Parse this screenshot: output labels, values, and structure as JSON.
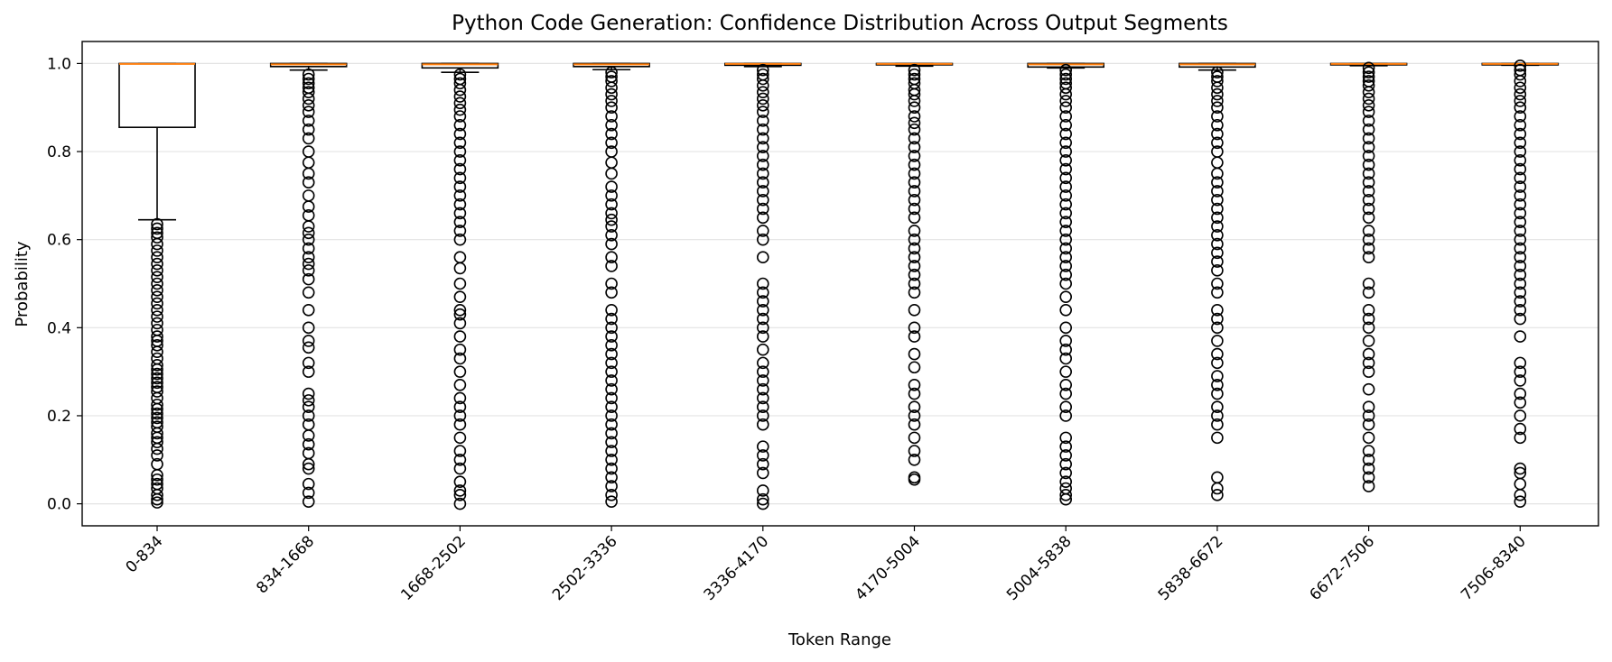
{
  "chart_data": {
    "type": "box",
    "title": "Python Code Generation: Confidence Distribution Across Output Segments",
    "xlabel": "Token Range",
    "ylabel": "Probability",
    "ylim": [
      -0.05,
      1.05
    ],
    "yticks": [
      0.0,
      0.2,
      0.4,
      0.6,
      0.8,
      1.0
    ],
    "ytick_labels": [
      "0.0",
      "0.2",
      "0.4",
      "0.6",
      "0.8",
      "1.0"
    ],
    "grid": "horizontal",
    "colors": {
      "median": "#ff7f0e",
      "box": "#000000",
      "grid": "#e3e3e3"
    },
    "categories": [
      "0-834",
      "834-1668",
      "1668-2502",
      "2502-3336",
      "3336-4170",
      "4170-5004",
      "5004-5838",
      "5838-6672",
      "6672-7506",
      "7506-8340"
    ],
    "boxes": [
      {
        "q1": 0.855,
        "median": 0.999,
        "q3": 1.0,
        "whisker_low": 0.645,
        "whisker_high": 1.0,
        "fliers": [
          0.635,
          0.625,
          0.615,
          0.605,
          0.59,
          0.575,
          0.56,
          0.545,
          0.53,
          0.515,
          0.5,
          0.485,
          0.47,
          0.455,
          0.44,
          0.425,
          0.41,
          0.395,
          0.38,
          0.37,
          0.36,
          0.345,
          0.33,
          0.315,
          0.305,
          0.295,
          0.285,
          0.275,
          0.265,
          0.255,
          0.24,
          0.225,
          0.215,
          0.205,
          0.195,
          0.185,
          0.175,
          0.16,
          0.15,
          0.14,
          0.125,
          0.11,
          0.09,
          0.065,
          0.055,
          0.045,
          0.035,
          0.02,
          0.01,
          0.003
        ]
      },
      {
        "q1": 0.993,
        "median": 0.998,
        "q3": 1.0,
        "whisker_low": 0.985,
        "whisker_high": 1.0,
        "fliers": [
          0.975,
          0.965,
          0.955,
          0.945,
          0.935,
          0.92,
          0.905,
          0.89,
          0.87,
          0.85,
          0.83,
          0.8,
          0.775,
          0.75,
          0.73,
          0.7,
          0.675,
          0.655,
          0.63,
          0.615,
          0.6,
          0.58,
          0.56,
          0.545,
          0.53,
          0.51,
          0.48,
          0.44,
          0.4,
          0.37,
          0.355,
          0.32,
          0.3,
          0.25,
          0.235,
          0.22,
          0.2,
          0.18,
          0.155,
          0.135,
          0.115,
          0.09,
          0.08,
          0.045,
          0.025,
          0.005
        ]
      },
      {
        "q1": 0.99,
        "median": 0.998,
        "q3": 1.0,
        "whisker_low": 0.98,
        "whisker_high": 1.0,
        "fliers": [
          0.975,
          0.965,
          0.955,
          0.94,
          0.925,
          0.91,
          0.895,
          0.88,
          0.86,
          0.84,
          0.82,
          0.8,
          0.78,
          0.76,
          0.74,
          0.72,
          0.7,
          0.68,
          0.66,
          0.64,
          0.62,
          0.6,
          0.56,
          0.535,
          0.5,
          0.47,
          0.44,
          0.43,
          0.41,
          0.38,
          0.35,
          0.33,
          0.3,
          0.27,
          0.24,
          0.22,
          0.2,
          0.18,
          0.15,
          0.12,
          0.1,
          0.08,
          0.05,
          0.03,
          0.02,
          0.0
        ]
      },
      {
        "q1": 0.993,
        "median": 0.998,
        "q3": 1.0,
        "whisker_low": 0.986,
        "whisker_high": 1.0,
        "fliers": [
          0.98,
          0.97,
          0.96,
          0.945,
          0.93,
          0.915,
          0.9,
          0.88,
          0.86,
          0.84,
          0.82,
          0.8,
          0.775,
          0.75,
          0.72,
          0.7,
          0.68,
          0.66,
          0.645,
          0.63,
          0.61,
          0.59,
          0.56,
          0.54,
          0.5,
          0.48,
          0.44,
          0.42,
          0.4,
          0.38,
          0.36,
          0.34,
          0.32,
          0.3,
          0.28,
          0.26,
          0.24,
          0.22,
          0.2,
          0.18,
          0.16,
          0.14,
          0.12,
          0.1,
          0.08,
          0.06,
          0.04,
          0.02,
          0.005
        ]
      },
      {
        "q1": 0.996,
        "median": 0.999,
        "q3": 1.0,
        "whisker_low": 0.993,
        "whisker_high": 1.0,
        "fliers": [
          0.985,
          0.975,
          0.965,
          0.95,
          0.935,
          0.92,
          0.905,
          0.89,
          0.87,
          0.85,
          0.83,
          0.81,
          0.79,
          0.77,
          0.75,
          0.73,
          0.71,
          0.69,
          0.67,
          0.65,
          0.62,
          0.6,
          0.56,
          0.5,
          0.48,
          0.46,
          0.44,
          0.42,
          0.4,
          0.38,
          0.35,
          0.32,
          0.3,
          0.28,
          0.26,
          0.24,
          0.22,
          0.2,
          0.18,
          0.13,
          0.11,
          0.09,
          0.07,
          0.03,
          0.01,
          0.0
        ]
      },
      {
        "q1": 0.997,
        "median": 0.999,
        "q3": 1.0,
        "whisker_low": 0.994,
        "whisker_high": 1.0,
        "fliers": [
          0.985,
          0.975,
          0.965,
          0.955,
          0.94,
          0.93,
          0.915,
          0.9,
          0.88,
          0.865,
          0.85,
          0.83,
          0.81,
          0.79,
          0.77,
          0.75,
          0.73,
          0.71,
          0.69,
          0.67,
          0.65,
          0.62,
          0.6,
          0.58,
          0.56,
          0.54,
          0.52,
          0.5,
          0.48,
          0.44,
          0.4,
          0.38,
          0.34,
          0.31,
          0.27,
          0.25,
          0.22,
          0.2,
          0.18,
          0.15,
          0.12,
          0.1,
          0.06,
          0.055
        ]
      },
      {
        "q1": 0.992,
        "median": 0.998,
        "q3": 1.0,
        "whisker_low": 0.99,
        "whisker_high": 1.0,
        "fliers": [
          0.985,
          0.975,
          0.965,
          0.955,
          0.945,
          0.93,
          0.915,
          0.9,
          0.88,
          0.86,
          0.84,
          0.82,
          0.8,
          0.78,
          0.76,
          0.74,
          0.72,
          0.7,
          0.68,
          0.66,
          0.64,
          0.62,
          0.6,
          0.58,
          0.56,
          0.54,
          0.52,
          0.5,
          0.47,
          0.44,
          0.4,
          0.37,
          0.35,
          0.33,
          0.3,
          0.27,
          0.25,
          0.22,
          0.2,
          0.15,
          0.13,
          0.11,
          0.09,
          0.07,
          0.05,
          0.035,
          0.02,
          0.01
        ]
      },
      {
        "q1": 0.992,
        "median": 0.998,
        "q3": 1.0,
        "whisker_low": 0.985,
        "whisker_high": 1.0,
        "fliers": [
          0.98,
          0.97,
          0.96,
          0.945,
          0.93,
          0.915,
          0.9,
          0.88,
          0.86,
          0.84,
          0.82,
          0.8,
          0.775,
          0.75,
          0.73,
          0.71,
          0.69,
          0.67,
          0.65,
          0.63,
          0.61,
          0.59,
          0.57,
          0.55,
          0.53,
          0.5,
          0.48,
          0.44,
          0.42,
          0.4,
          0.37,
          0.34,
          0.32,
          0.29,
          0.27,
          0.25,
          0.22,
          0.2,
          0.18,
          0.15,
          0.06,
          0.035,
          0.02
        ]
      },
      {
        "q1": 0.997,
        "median": 0.999,
        "q3": 1.0,
        "whisker_low": 0.995,
        "whisker_high": 1.0,
        "fliers": [
          0.99,
          0.98,
          0.97,
          0.96,
          0.95,
          0.935,
          0.92,
          0.905,
          0.89,
          0.87,
          0.85,
          0.83,
          0.81,
          0.79,
          0.77,
          0.75,
          0.73,
          0.71,
          0.69,
          0.67,
          0.65,
          0.62,
          0.6,
          0.58,
          0.56,
          0.5,
          0.48,
          0.44,
          0.42,
          0.4,
          0.37,
          0.34,
          0.32,
          0.3,
          0.26,
          0.22,
          0.2,
          0.18,
          0.15,
          0.12,
          0.1,
          0.08,
          0.06,
          0.04
        ]
      },
      {
        "q1": 0.997,
        "median": 0.999,
        "q3": 1.0,
        "whisker_low": 0.996,
        "whisker_high": 1.0,
        "fliers": [
          0.995,
          0.985,
          0.975,
          0.96,
          0.945,
          0.93,
          0.915,
          0.9,
          0.88,
          0.86,
          0.84,
          0.82,
          0.8,
          0.78,
          0.76,
          0.74,
          0.72,
          0.7,
          0.68,
          0.66,
          0.64,
          0.62,
          0.6,
          0.58,
          0.56,
          0.54,
          0.52,
          0.5,
          0.48,
          0.46,
          0.44,
          0.42,
          0.38,
          0.32,
          0.3,
          0.28,
          0.25,
          0.23,
          0.2,
          0.17,
          0.15,
          0.08,
          0.07,
          0.045,
          0.02,
          0.005
        ]
      }
    ]
  }
}
